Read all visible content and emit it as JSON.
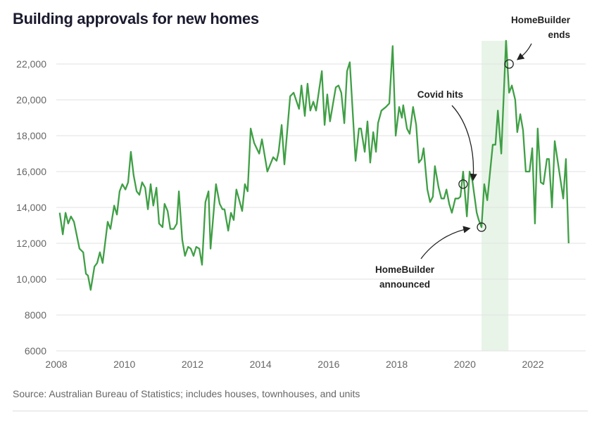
{
  "chart_data": {
    "type": "line",
    "title": "Building approvals for new homes",
    "xlabel": "",
    "ylabel": "",
    "xlim": [
      2008,
      2023.3
    ],
    "ylim": [
      6000,
      23500
    ],
    "x_ticks": [
      "2008",
      "2010",
      "2012",
      "2014",
      "2016",
      "2018",
      "2020",
      "2022"
    ],
    "y_ticks": [
      "6000",
      "8000",
      "10,000",
      "12,000",
      "14,000",
      "16,000",
      "18,000",
      "20,000",
      "22,000"
    ],
    "grid": "horizontal",
    "line_color": "#3f9f45",
    "highlight": {
      "from": 2020.49,
      "to": 2021.28,
      "color": "#e8f4e8"
    },
    "annotations": [
      {
        "label": [
          "Covid hits"
        ],
        "point": [
          2019.95,
          15300
        ]
      },
      {
        "label": [
          "HomeBuilder",
          "announced"
        ],
        "point": [
          2020.49,
          12900
        ]
      },
      {
        "label": [
          "HomeBuilder",
          "ends"
        ],
        "point": [
          2021.3,
          22000
        ]
      }
    ],
    "points": [
      [
        2008.1,
        13700
      ],
      [
        2008.19,
        12500
      ],
      [
        2008.27,
        13700
      ],
      [
        2008.35,
        13100
      ],
      [
        2008.43,
        13500
      ],
      [
        2008.52,
        13200
      ],
      [
        2008.68,
        11700
      ],
      [
        2008.79,
        11500
      ],
      [
        2008.87,
        10300
      ],
      [
        2008.93,
        10200
      ],
      [
        2009.01,
        9400
      ],
      [
        2009.12,
        10700
      ],
      [
        2009.2,
        10900
      ],
      [
        2009.28,
        11500
      ],
      [
        2009.36,
        10900
      ],
      [
        2009.51,
        13200
      ],
      [
        2009.59,
        12800
      ],
      [
        2009.7,
        14100
      ],
      [
        2009.78,
        13600
      ],
      [
        2009.86,
        14900
      ],
      [
        2009.94,
        15300
      ],
      [
        2010.03,
        15000
      ],
      [
        2010.11,
        15400
      ],
      [
        2010.19,
        17100
      ],
      [
        2010.27,
        15800
      ],
      [
        2010.36,
        14900
      ],
      [
        2010.44,
        14700
      ],
      [
        2010.52,
        15400
      ],
      [
        2010.61,
        15100
      ],
      [
        2010.69,
        13900
      ],
      [
        2010.77,
        15300
      ],
      [
        2010.85,
        14100
      ],
      [
        2010.94,
        15100
      ],
      [
        2011.02,
        13100
      ],
      [
        2011.12,
        12900
      ],
      [
        2011.18,
        14200
      ],
      [
        2011.27,
        13800
      ],
      [
        2011.35,
        12800
      ],
      [
        2011.45,
        12800
      ],
      [
        2011.54,
        13100
      ],
      [
        2011.6,
        14900
      ],
      [
        2011.7,
        12200
      ],
      [
        2011.78,
        11300
      ],
      [
        2011.87,
        11800
      ],
      [
        2011.95,
        11700
      ],
      [
        2012.03,
        11300
      ],
      [
        2012.11,
        11800
      ],
      [
        2012.2,
        11700
      ],
      [
        2012.28,
        10800
      ],
      [
        2012.38,
        14300
      ],
      [
        2012.47,
        14900
      ],
      [
        2012.53,
        11700
      ],
      [
        2012.69,
        15300
      ],
      [
        2012.8,
        14200
      ],
      [
        2012.88,
        13900
      ],
      [
        2012.94,
        13900
      ],
      [
        2013.05,
        12700
      ],
      [
        2013.13,
        13700
      ],
      [
        2013.21,
        13300
      ],
      [
        2013.29,
        15000
      ],
      [
        2013.46,
        13800
      ],
      [
        2013.54,
        15300
      ],
      [
        2013.62,
        14900
      ],
      [
        2013.71,
        18400
      ],
      [
        2013.81,
        17600
      ],
      [
        2013.96,
        17000
      ],
      [
        2014.04,
        17800
      ],
      [
        2014.2,
        16000
      ],
      [
        2014.37,
        16800
      ],
      [
        2014.47,
        16600
      ],
      [
        2014.53,
        17100
      ],
      [
        2014.62,
        18600
      ],
      [
        2014.7,
        16400
      ],
      [
        2014.87,
        20200
      ],
      [
        2014.97,
        20400
      ],
      [
        2015.13,
        19500
      ],
      [
        2015.2,
        20800
      ],
      [
        2015.3,
        19100
      ],
      [
        2015.38,
        20900
      ],
      [
        2015.46,
        19400
      ],
      [
        2015.55,
        19900
      ],
      [
        2015.63,
        19400
      ],
      [
        2015.8,
        21600
      ],
      [
        2015.88,
        18600
      ],
      [
        2015.96,
        20300
      ],
      [
        2016.04,
        18800
      ],
      [
        2016.21,
        20700
      ],
      [
        2016.29,
        20800
      ],
      [
        2016.37,
        20400
      ],
      [
        2016.46,
        18700
      ],
      [
        2016.54,
        21600
      ],
      [
        2016.62,
        22100
      ],
      [
        2016.79,
        16600
      ],
      [
        2016.89,
        18400
      ],
      [
        2016.95,
        18400
      ],
      [
        2017.06,
        17100
      ],
      [
        2017.14,
        18800
      ],
      [
        2017.22,
        16500
      ],
      [
        2017.31,
        18200
      ],
      [
        2017.39,
        17100
      ],
      [
        2017.45,
        18700
      ],
      [
        2017.55,
        19400
      ],
      [
        2017.68,
        19600
      ],
      [
        2017.78,
        19800
      ],
      [
        2017.88,
        23000
      ],
      [
        2017.97,
        18000
      ],
      [
        2018.07,
        19600
      ],
      [
        2018.15,
        19000
      ],
      [
        2018.19,
        19700
      ],
      [
        2018.3,
        18400
      ],
      [
        2018.38,
        18100
      ],
      [
        2018.48,
        19600
      ],
      [
        2018.57,
        18600
      ],
      [
        2018.65,
        16500
      ],
      [
        2018.73,
        16700
      ],
      [
        2018.79,
        17300
      ],
      [
        2018.9,
        15000
      ],
      [
        2018.98,
        14300
      ],
      [
        2019.06,
        14600
      ],
      [
        2019.12,
        16300
      ],
      [
        2019.23,
        15100
      ],
      [
        2019.31,
        14500
      ],
      [
        2019.39,
        14500
      ],
      [
        2019.46,
        15000
      ],
      [
        2019.54,
        14200
      ],
      [
        2019.62,
        13700
      ],
      [
        2019.72,
        14500
      ],
      [
        2019.81,
        14500
      ],
      [
        2019.87,
        14600
      ],
      [
        2019.95,
        16000
      ],
      [
        2020.06,
        13500
      ],
      [
        2020.14,
        16000
      ],
      [
        2020.22,
        15500
      ],
      [
        2020.35,
        13700
      ],
      [
        2020.41,
        13300
      ],
      [
        2020.49,
        12900
      ],
      [
        2020.57,
        15300
      ],
      [
        2020.66,
        14400
      ],
      [
        2020.82,
        17500
      ],
      [
        2020.9,
        17500
      ],
      [
        2020.97,
        19400
      ],
      [
        2021.07,
        17000
      ],
      [
        2021.21,
        23300
      ],
      [
        2021.3,
        20400
      ],
      [
        2021.38,
        20800
      ],
      [
        2021.48,
        20000
      ],
      [
        2021.54,
        18200
      ],
      [
        2021.63,
        19200
      ],
      [
        2021.71,
        18300
      ],
      [
        2021.79,
        16000
      ],
      [
        2021.9,
        16000
      ],
      [
        2021.98,
        17300
      ],
      [
        2022.06,
        13100
      ],
      [
        2022.14,
        18400
      ],
      [
        2022.23,
        15400
      ],
      [
        2022.31,
        15300
      ],
      [
        2022.41,
        16700
      ],
      [
        2022.47,
        16700
      ],
      [
        2022.56,
        14000
      ],
      [
        2022.64,
        17700
      ],
      [
        2022.89,
        14500
      ],
      [
        2022.97,
        16700
      ],
      [
        2023.05,
        12000
      ]
    ]
  },
  "source": "Source: Australian Bureau of Statistics; includes houses, townhouses, and units"
}
